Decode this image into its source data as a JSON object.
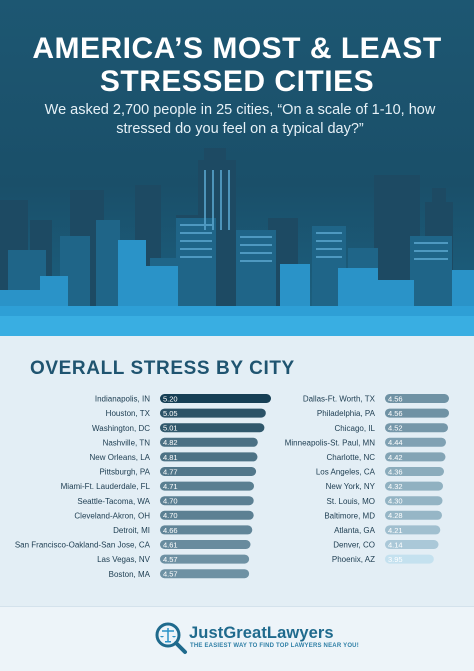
{
  "header": {
    "title_line1": "AMERICA’S MOST & LEAST",
    "title_line2": "STRESSED CITIES",
    "subtitle": "We asked 2,700 people in 25 cities, “On a scale of 1-10, how stressed do you feel on a typical day?”"
  },
  "chart_heading": "OVERALL STRESS BY CITY",
  "chart_data": {
    "type": "bar",
    "title": "OVERALL STRESS BY CITY",
    "orientation": "horizontal",
    "xlabel": "",
    "ylabel": "",
    "xlim": [
      0,
      5.2
    ],
    "grid": false,
    "columns": [
      {
        "categories": [
          "Indianapolis, IN",
          "Houston, TX",
          "Washington, DC",
          "Nashville, TN",
          "New Orleans, LA",
          "Pittsburgh, PA",
          "Miami-Ft. Lauderdale, FL",
          "Seattle-Tacoma, WA",
          "Cleveland-Akron, OH",
          "Detroit, MI",
          "San Francisco-Oakland-San Jose, CA",
          "Las Vegas, NV",
          "Boston, MA"
        ],
        "values": [
          5.2,
          5.05,
          5.01,
          4.82,
          4.81,
          4.77,
          4.71,
          4.7,
          4.7,
          4.66,
          4.61,
          4.57,
          4.57
        ],
        "value_labels": [
          "5.20",
          "5.05",
          "5.01",
          "4.82",
          "4.81",
          "4.77",
          "4.71",
          "4.70",
          "4.70",
          "4.66",
          "4.61",
          "4.57",
          "4.57"
        ]
      },
      {
        "categories": [
          "Dallas-Ft. Worth, TX",
          "Philadelphia, PA",
          "Chicago, IL",
          "Minneapolis-St. Paul, MN",
          "Charlotte, NC",
          "Los Angeles, CA",
          "New York, NY",
          "St. Louis, MO",
          "Baltimore, MD",
          "Atlanta, GA",
          "Denver, CO",
          "Phoenix, AZ"
        ],
        "values": [
          4.56,
          4.56,
          4.52,
          4.44,
          4.42,
          4.36,
          4.32,
          4.3,
          4.28,
          4.21,
          4.14,
          3.95
        ],
        "value_labels": [
          "4.56",
          "4.56",
          "4.52",
          "4.44",
          "4.42",
          "4.36",
          "4.32",
          "4.30",
          "4.28",
          "4.21",
          "4.14",
          "3.95"
        ]
      }
    ],
    "colors": {
      "darkest": "#163f55",
      "lightest": "#c4e1ef"
    }
  },
  "footer": {
    "brand": "JustGreatLawyers",
    "tagline": "THE EASIEST WAY TO FIND TOP LAWYERS NEAR YOU!"
  },
  "icons": {
    "logo": "scales-of-justice-magnifier-icon"
  }
}
